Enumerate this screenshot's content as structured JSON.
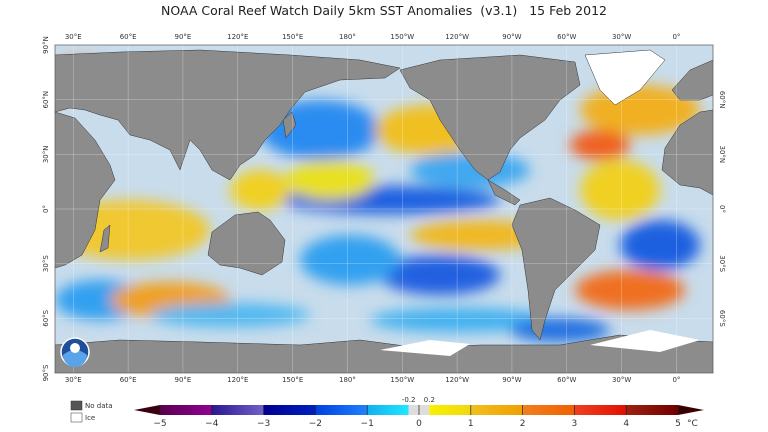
{
  "title": "NOAA Coral Reef Watch Daily 5km SST Anomalies  (v3.1)   15 Feb 2012",
  "map": {
    "projection": "equirectangular",
    "lon_start": 20,
    "top_lon_labels": [
      "30°E",
      "60°E",
      "90°E",
      "120°E",
      "150°E",
      "180°",
      "150°W",
      "120°W",
      "90°W",
      "60°W",
      "30°W",
      "0°"
    ],
    "bottom_lon_labels": [
      "30°E",
      "60°E",
      "90°E",
      "120°E",
      "150°E",
      "180°",
      "150°W",
      "120°W",
      "90°W",
      "60°W",
      "30°W",
      "0°"
    ],
    "lon_values": [
      30,
      60,
      90,
      120,
      150,
      180,
      210,
      240,
      270,
      300,
      330,
      360
    ],
    "left_lat_labels": [
      "90°N",
      "60°N",
      "30°N",
      "0°",
      "30°S",
      "60°S",
      "90°S"
    ],
    "left_lat_values": [
      90,
      60,
      30,
      0,
      -30,
      -60,
      -90
    ],
    "right_lat_labels": [
      "60°N",
      "30°N",
      "0°",
      "30°S",
      "60°S"
    ],
    "right_lat_values": [
      60,
      30,
      0,
      -30,
      -60
    ],
    "land_color": "#8c8c8c",
    "logo": "NOAA"
  },
  "legend": {
    "no_data": {
      "label": "No data",
      "color": "#555555"
    },
    "ice": {
      "label": "Ice",
      "color": "#ffffff"
    }
  },
  "colorbar": {
    "unit": "°C",
    "ticks": [
      "−5",
      "−4",
      "−3",
      "−2",
      "−1",
      "0",
      "1",
      "2",
      "3",
      "4",
      "5"
    ],
    "tick_values": [
      -5,
      -4,
      -3,
      -2,
      -1,
      0,
      1,
      2,
      3,
      4,
      5
    ],
    "small_ticks": [
      "-0.2",
      "0.2"
    ],
    "min": -5,
    "max": 5,
    "under_color": "#3a0010",
    "over_color": "#3a0000",
    "segments": [
      {
        "from": -5,
        "to": -4,
        "c1": "#5a0050",
        "c2": "#900090"
      },
      {
        "from": -4,
        "to": -3,
        "c1": "#2a1890",
        "c2": "#7060c8"
      },
      {
        "from": -3,
        "to": -2,
        "c1": "#000090",
        "c2": "#0020c0"
      },
      {
        "from": -2,
        "to": -1,
        "c1": "#0040e0",
        "c2": "#2080ff"
      },
      {
        "from": -1,
        "to": -0.2,
        "c1": "#10b0f0",
        "c2": "#20e8ff"
      },
      {
        "from": -0.2,
        "to": 0.2,
        "c1": "#dddddd",
        "c2": "#dddddd"
      },
      {
        "from": 0.2,
        "to": 1,
        "c1": "#f8f000",
        "c2": "#f0d810"
      },
      {
        "from": 1,
        "to": 2,
        "c1": "#f0c020",
        "c2": "#f0a000"
      },
      {
        "from": 2,
        "to": 3,
        "c1": "#f08020",
        "c2": "#f06000"
      },
      {
        "from": 3,
        "to": 4,
        "c1": "#f04020",
        "c2": "#e01000"
      },
      {
        "from": 4,
        "to": 5,
        "c1": "#a02010",
        "c2": "#700000"
      }
    ]
  }
}
